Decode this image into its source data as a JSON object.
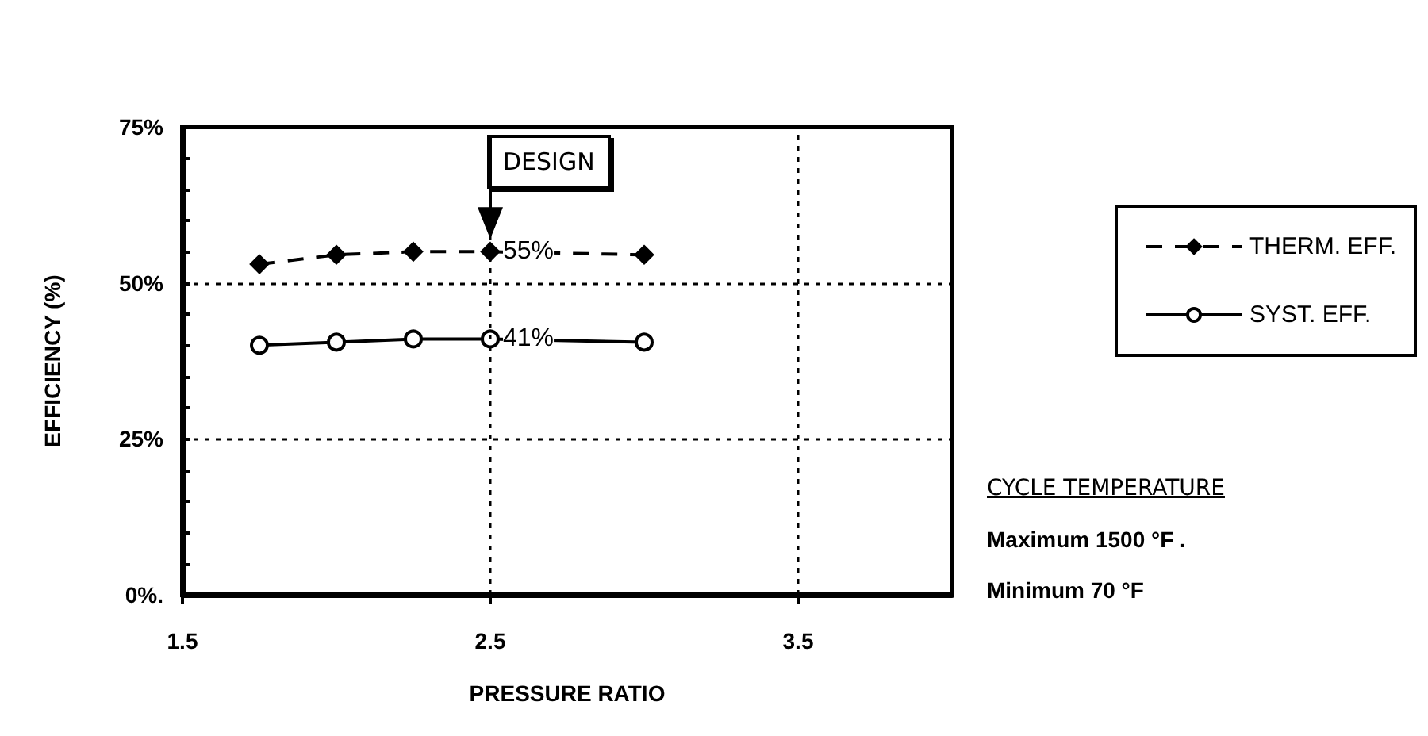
{
  "chart_data": {
    "type": "line",
    "xlabel": "PRESSURE RATIO",
    "ylabel": "EFFICIENCY (%)",
    "x": [
      1.75,
      2.0,
      2.25,
      2.5,
      3.0
    ],
    "series": [
      {
        "name": "THERM. EFF.",
        "color": "#000000",
        "values": [
          53,
          54.5,
          55,
          55,
          54.5
        ],
        "value_labels": [
          null,
          null,
          null,
          "55%",
          null
        ],
        "marker": "diamond",
        "line_style": "dashed"
      },
      {
        "name": "SYST. EFF.",
        "color": "#000000",
        "values": [
          40,
          40.5,
          41,
          41,
          40.5
        ],
        "value_labels": [
          null,
          null,
          null,
          "41%",
          null
        ],
        "marker": "circle",
        "line_style": "solid"
      }
    ],
    "xlim": [
      1.5,
      4.0
    ],
    "xticks": [
      1.5,
      2.5,
      3.5
    ],
    "ylim": [
      0,
      75
    ],
    "yticks": [
      {
        "value": 0,
        "label": "0%."
      },
      {
        "value": 5,
        "label": null
      },
      {
        "value": 10,
        "label": null
      },
      {
        "value": 15,
        "label": null
      },
      {
        "value": 20,
        "label": null
      },
      {
        "value": 25,
        "label": "25%"
      },
      {
        "value": 30,
        "label": null
      },
      {
        "value": 35,
        "label": null
      },
      {
        "value": 40,
        "label": null
      },
      {
        "value": 45,
        "label": null
      },
      {
        "value": 50,
        "label": "50%"
      },
      {
        "value": 55,
        "label": null
      },
      {
        "value": 60,
        "label": null
      },
      {
        "value": 65,
        "label": null
      },
      {
        "value": 70,
        "label": null
      },
      {
        "value": 75,
        "label": "75%"
      }
    ],
    "grid": true,
    "legend": "right",
    "annotations": [
      "DESIGN",
      "CYCLE TEMPERATURE",
      "Maximum 1500 °F .",
      "Minimum 70 °F"
    ]
  }
}
